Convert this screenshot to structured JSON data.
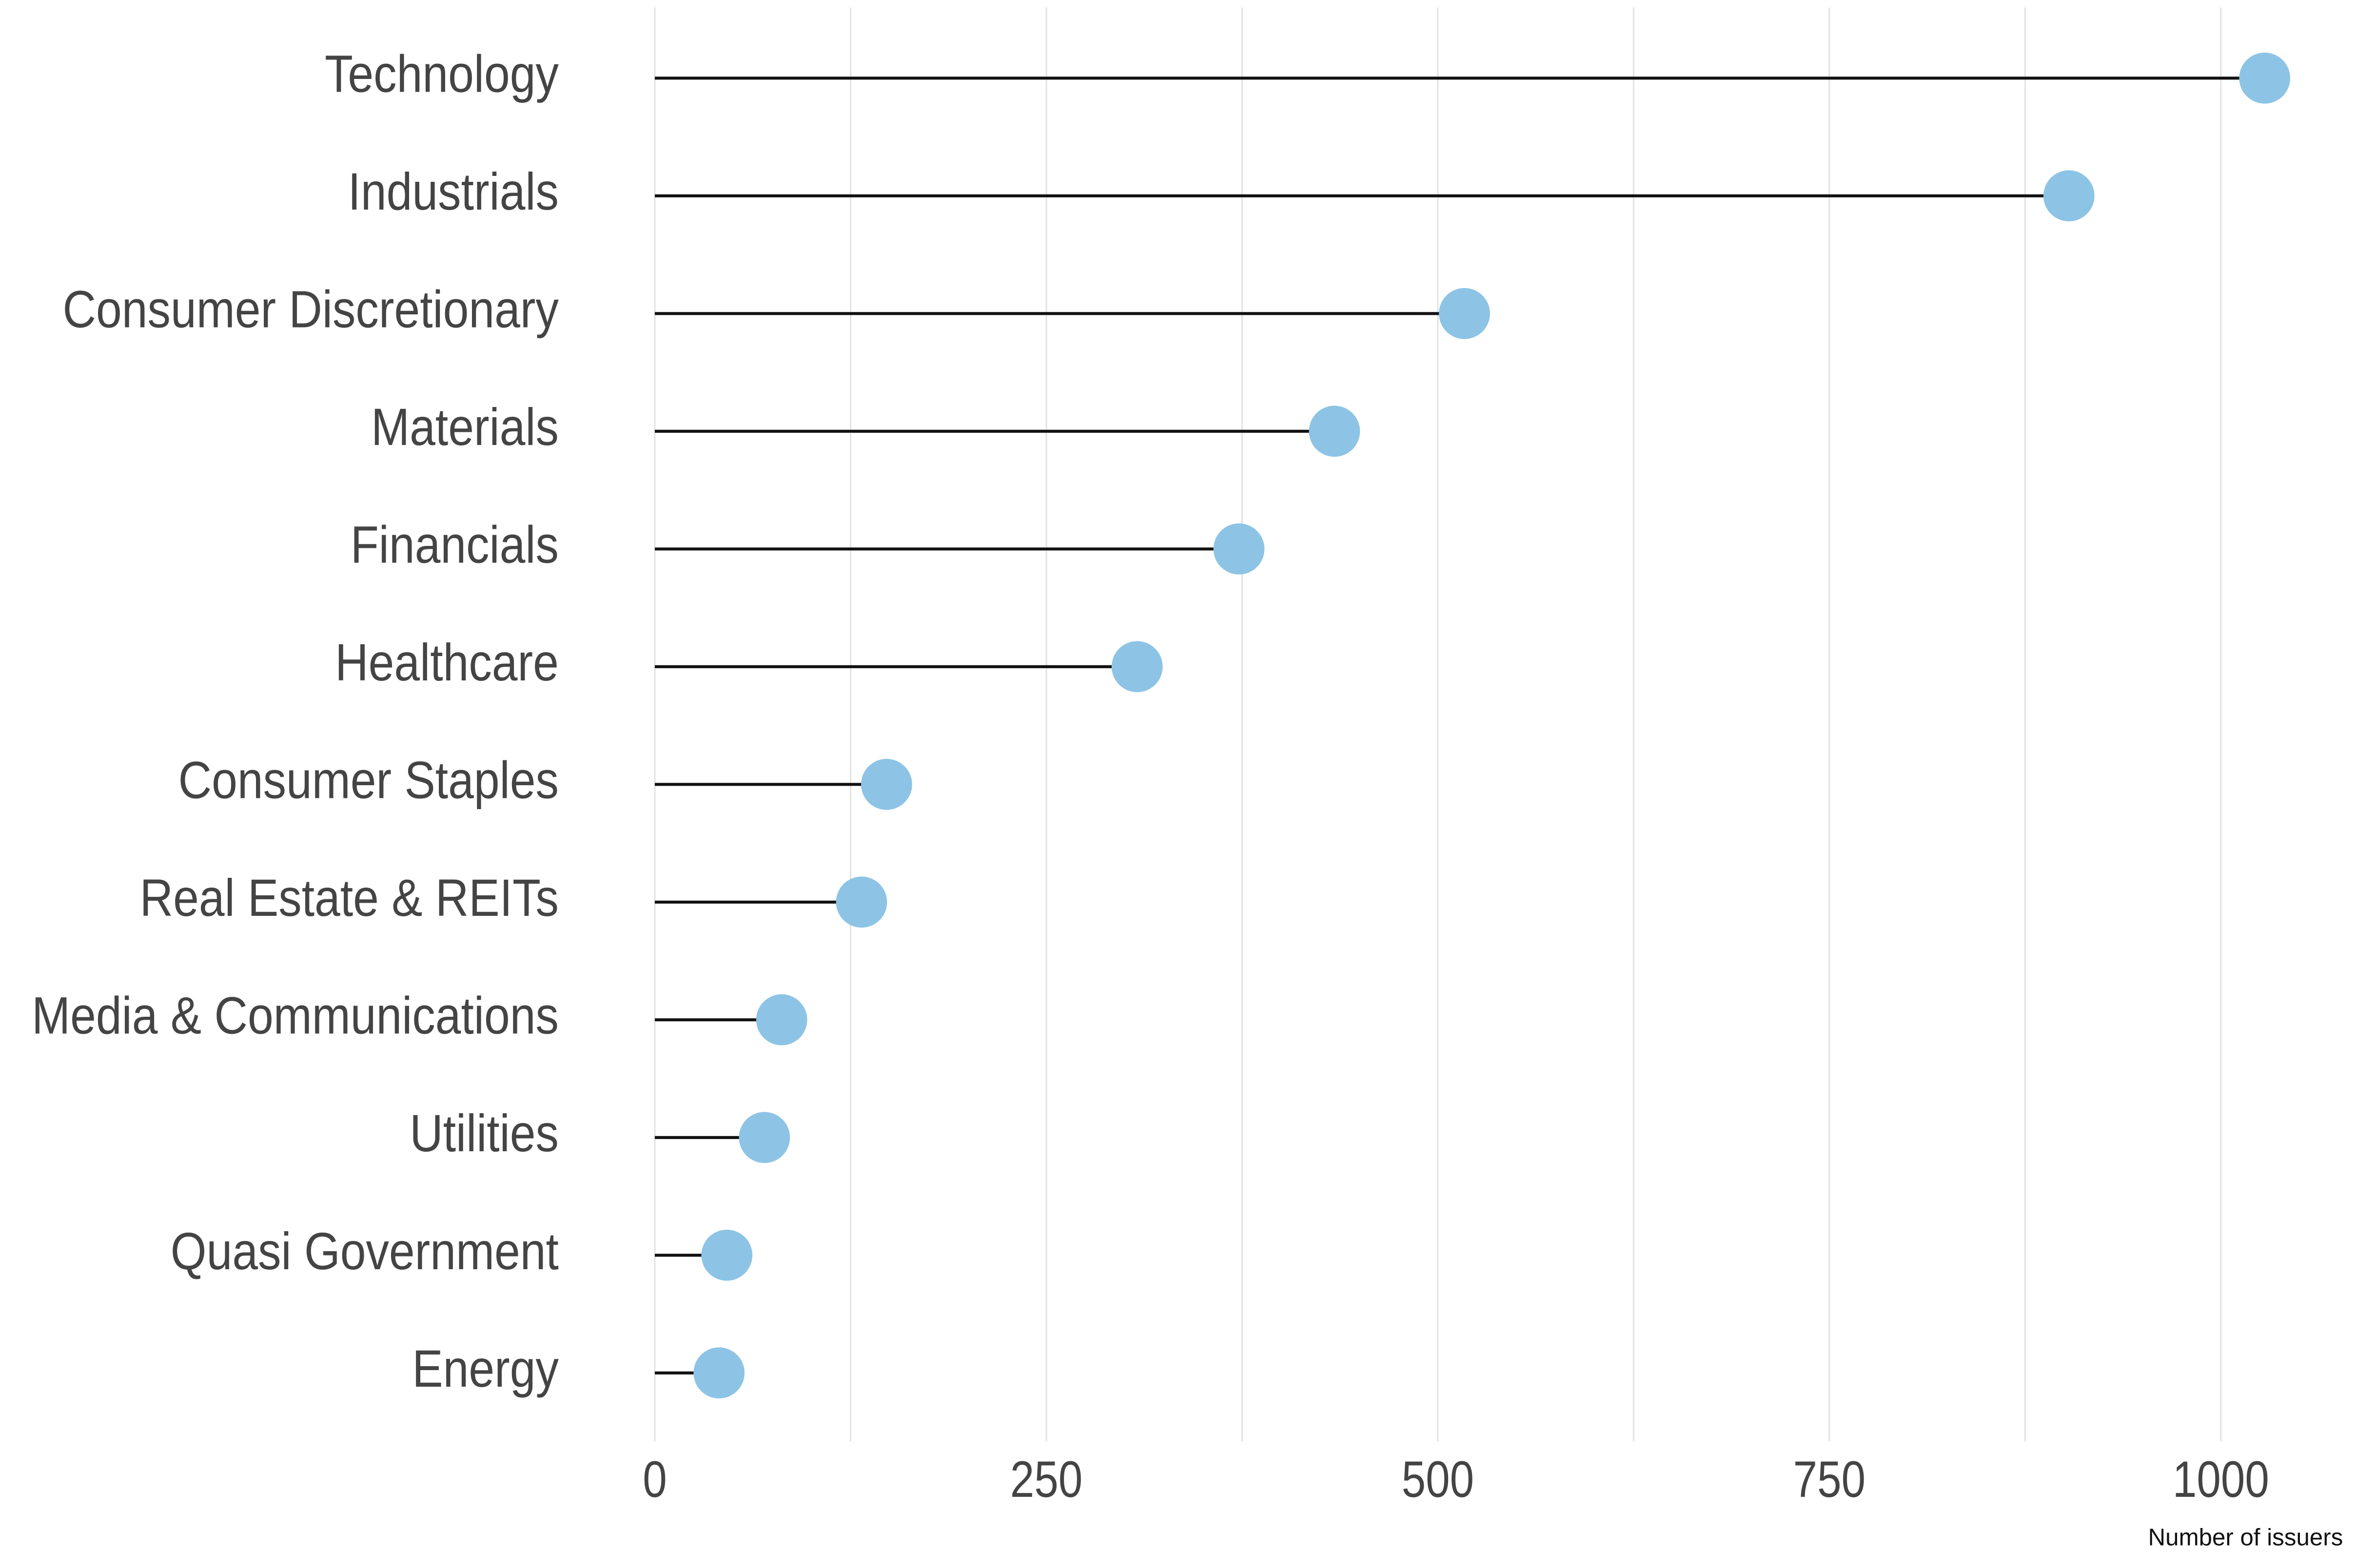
{
  "chart_data": {
    "type": "lollipop",
    "categories": [
      "Technology",
      "Industrials",
      "Consumer Discretionary",
      "Materials",
      "Financials",
      "Healthcare",
      "Consumer Staples",
      "Real Estate & REITs",
      "Media & Communications",
      "Utilities",
      "Quasi Government",
      "Energy"
    ],
    "values": [
      1028,
      903,
      517,
      434,
      373,
      308,
      148,
      132,
      81,
      70,
      46,
      41
    ],
    "color": "#8dc4e6",
    "stem_color": "#111111",
    "xlabel": "Number of issuers",
    "xlim": [
      0,
      1078
    ],
    "xticks": [
      0,
      250,
      500,
      750,
      1000
    ],
    "minor_xticks": [
      125,
      375,
      625,
      875
    ],
    "grid": true
  }
}
